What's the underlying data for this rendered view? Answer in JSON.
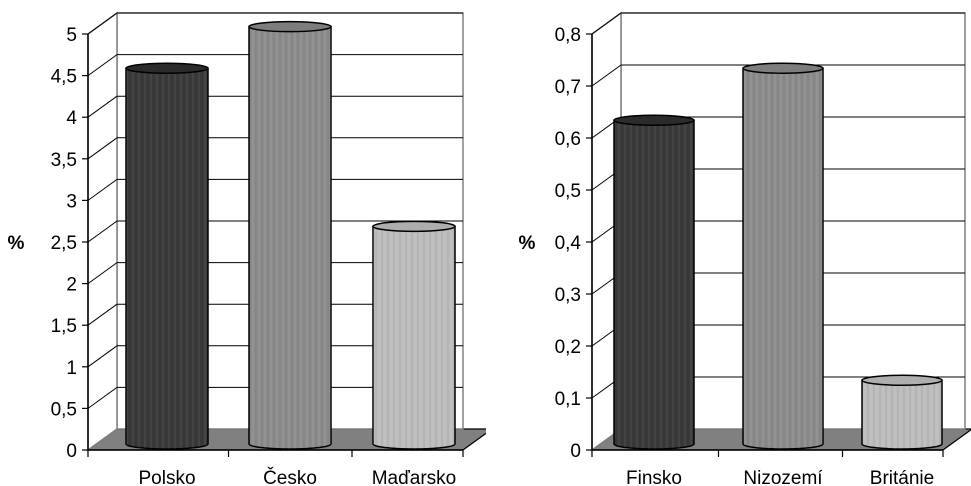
{
  "chart_data": [
    {
      "type": "bar",
      "style": "3d-cylinder",
      "categories": [
        "Polsko",
        "Česko",
        "Maďarsko"
      ],
      "values": [
        4.5,
        5.0,
        2.6
      ],
      "ylabel": "%",
      "ylim": [
        0,
        5
      ],
      "yticks": [
        "0",
        "0,5",
        "1",
        "1,5",
        "2",
        "2,5",
        "3",
        "3,5",
        "4",
        "4,5",
        "5"
      ],
      "grid": true,
      "colors": [
        "#3a3a3a",
        "#8c8c8c",
        "#bdbdbd"
      ]
    },
    {
      "type": "bar",
      "style": "3d-cylinder",
      "categories": [
        "Finsko",
        "Nizozemí",
        "Británie"
      ],
      "values": [
        0.62,
        0.72,
        0.12
      ],
      "ylabel": "%",
      "ylim": [
        0,
        0.8
      ],
      "yticks": [
        "0",
        "0,1",
        "0,2",
        "0,3",
        "0,4",
        "0,5",
        "0,6",
        "0,7",
        "0,8"
      ],
      "grid": true,
      "colors": [
        "#3a3a3a",
        "#8c8c8c",
        "#bdbdbd"
      ]
    }
  ]
}
